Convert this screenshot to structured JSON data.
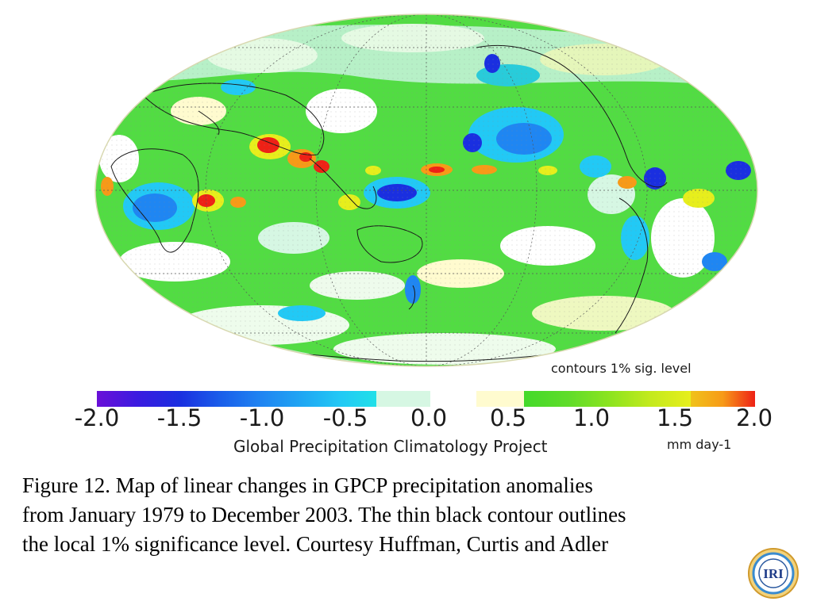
{
  "map": {
    "projection": "Mollweide",
    "contour_note": "contours 1% sig. level"
  },
  "colorbar": {
    "ticks": [
      "-2.0",
      "-1.5",
      "-1.0",
      "-0.5",
      "0.0",
      "0.5",
      "1.0",
      "1.5",
      "2.0"
    ],
    "colors": [
      "#6a10d8",
      "#1a2fe0",
      "#1f86f2",
      "#22c9f5",
      "#d6f7e3",
      "#ffffff",
      "#fffbcf",
      "#44d92a",
      "#e7ee1c",
      "#f79a18",
      "#ee2116"
    ],
    "project": "Global Precipitation Climatology Project",
    "units": "mm day-1"
  },
  "caption": {
    "lines": [
      "Figure 12.  Map of linear changes in GPCP precipitation anomalies",
      "from January 1979 to December 2003.  The thin black contour outlines",
      "the local 1% significance level.  Courtesy Huffman, Curtis and Adler"
    ]
  },
  "logo": {
    "text": "IRI"
  }
}
